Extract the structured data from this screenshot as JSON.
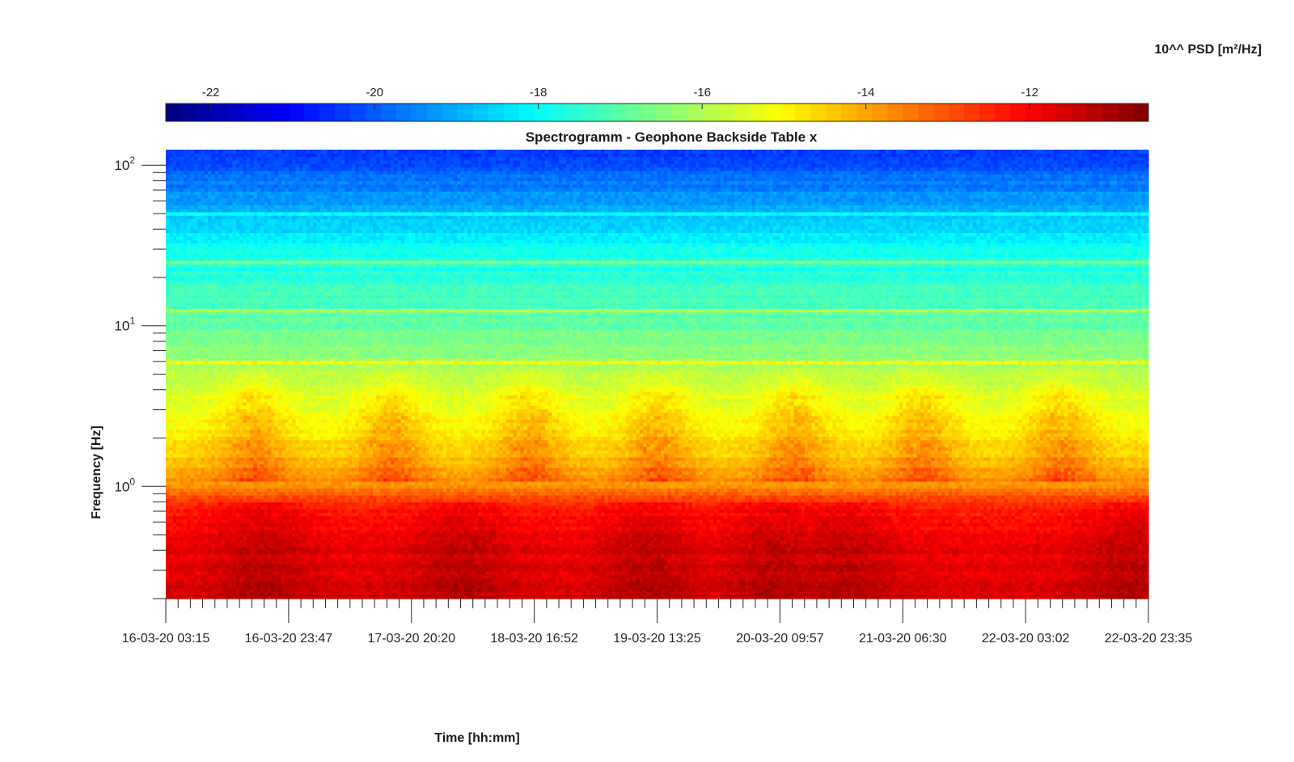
{
  "chart_data": {
    "type": "heatmap",
    "title": "Spectrogramm - Geophone Backside Table x",
    "xlabel": "Time [hh:mm]",
    "ylabel": "Frequency [Hz]",
    "x_tick_labels": [
      "16-03-20 03:15",
      "16-03-20 23:47",
      "17-03-20 20:20",
      "18-03-20 16:52",
      "19-03-20 13:25",
      "20-03-20 09:57",
      "21-03-20 06:30",
      "22-03-20 03:02",
      "22-03-20 23:35"
    ],
    "y_scale": "log",
    "y_tick_labels": [
      {
        "base": "10",
        "exp": "2",
        "value": 100
      },
      {
        "base": "10",
        "exp": "1",
        "value": 10
      },
      {
        "base": "10",
        "exp": "0",
        "value": 1
      }
    ],
    "ylim": [
      0.2,
      125
    ],
    "colorbar": {
      "label": "10^^ PSD [m²/Hz]",
      "ticks": [
        "-22",
        "-20",
        "-18",
        "-16",
        "-14",
        "-12"
      ],
      "tick_values": [
        -22,
        -20,
        -18,
        -16,
        -14,
        -12
      ],
      "range": [
        -22.55,
        -10.55
      ],
      "colormap": "jet",
      "location": "top"
    },
    "spectral_lines_hz": [
      6,
      12.7,
      25,
      50
    ],
    "features": {
      "band_levels": [
        {
          "freq_hz": 0.25,
          "log10_psd": -11.6
        },
        {
          "freq_hz": 0.5,
          "log10_psd": -11.9
        },
        {
          "freq_hz": 0.8,
          "log10_psd": -12.6
        },
        {
          "freq_hz": 1.0,
          "log10_psd": -13.6
        },
        {
          "freq_hz": 2.0,
          "log10_psd": -14.9
        },
        {
          "freq_hz": 4.0,
          "log10_psd": -15.6
        },
        {
          "freq_hz": 10,
          "log10_psd": -16.9
        },
        {
          "freq_hz": 30,
          "log10_psd": -17.9
        },
        {
          "freq_hz": 70,
          "log10_psd": -19.5
        },
        {
          "freq_hz": 110,
          "log10_psd": -20.3
        }
      ]
    }
  }
}
